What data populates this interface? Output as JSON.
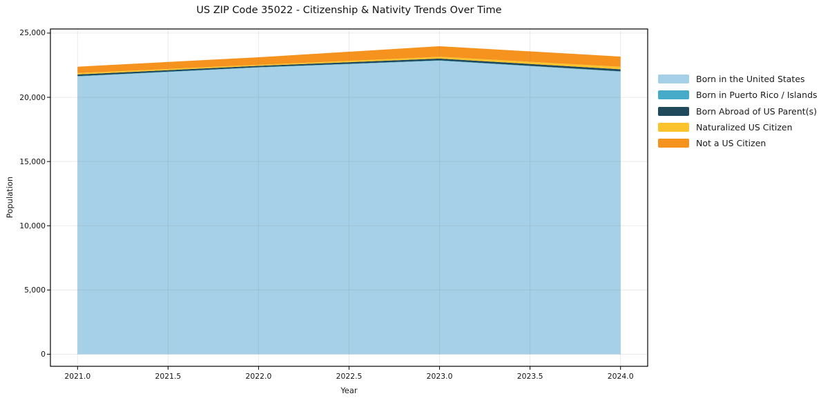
{
  "chart_data": {
    "type": "area",
    "stacked": true,
    "title": "US ZIP Code 35022 - Citizenship & Nativity Trends Over Time",
    "xlabel": "Year",
    "ylabel": "Population",
    "x": [
      2021,
      2022,
      2023,
      2024
    ],
    "series": [
      {
        "name": "Born in the United States",
        "color": "#A5D0E7",
        "values": [
          21620,
          22320,
          22850,
          22000
        ]
      },
      {
        "name": "Born in Puerto Rico / Islands",
        "color": "#45ABC9",
        "values": [
          30,
          25,
          25,
          25
        ]
      },
      {
        "name": "Born Abroad of US Parent(s)",
        "color": "#20495C",
        "values": [
          130,
          110,
          140,
          160
        ]
      },
      {
        "name": "Naturalized US Citizen",
        "color": "#FCC32D",
        "values": [
          110,
          80,
          140,
          190
        ]
      },
      {
        "name": "Not a US Citizen",
        "color": "#F6921E",
        "values": [
          490,
          585,
          825,
          795
        ]
      }
    ],
    "xlim": [
      2020.85,
      2024.15
    ],
    "ylim": [
      -940,
      25320
    ],
    "xticks": {
      "values": [
        2021.0,
        2021.5,
        2022.0,
        2022.5,
        2023.0,
        2023.5,
        2024.0
      ],
      "labels": [
        "2021.0",
        "2021.5",
        "2022.0",
        "2022.5",
        "2023.0",
        "2023.5",
        "2024.0"
      ]
    },
    "yticks": {
      "values": [
        0,
        5000,
        10000,
        15000,
        20000,
        25000
      ],
      "labels": [
        "0",
        "5,000",
        "10,000",
        "15,000",
        "20,000",
        "25,000"
      ]
    },
    "grid": true,
    "legend_position": "right",
    "axis_color": "#000000",
    "grid_color": "rgba(125,125,125,0.16)",
    "background_color": "#ffffff"
  }
}
